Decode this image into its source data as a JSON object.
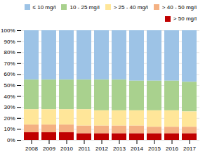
{
  "chart_data": {
    "type": "bar",
    "stacked": true,
    "categories": [
      "2008",
      "2009",
      "2010",
      "2011",
      "2012",
      "2013",
      "2014",
      "2015",
      "2016",
      "2017"
    ],
    "series": [
      {
        "name": "≤ 10 mg/l",
        "color": "#9DC3E6",
        "values": [
          45,
          45,
          45,
          45,
          45,
          45,
          46,
          46,
          46,
          47
        ]
      },
      {
        "name": "10 - 25 mg/l",
        "color": "#A9D18E",
        "values": [
          27,
          27,
          27,
          27,
          28,
          28,
          27,
          27,
          27,
          27
        ]
      },
      {
        "name": "> 25 - 40 mg/l",
        "color": "#FFE699",
        "values": [
          14,
          14,
          14,
          15,
          14,
          14,
          14,
          15,
          15,
          14
        ]
      },
      {
        "name": "> 40 - 50 mg/l",
        "color": "#F4B183",
        "values": [
          7,
          7,
          7,
          7,
          7,
          7,
          7,
          6,
          6,
          6
        ]
      },
      {
        "name": "> 50 mg/l",
        "color": "#C00000",
        "values": [
          7,
          7,
          7,
          6,
          6,
          6,
          6,
          6,
          6,
          6
        ]
      }
    ],
    "ylim": [
      0,
      100
    ],
    "yticks": [
      {
        "value": 0,
        "label": "0%"
      },
      {
        "value": 10,
        "label": "10%"
      },
      {
        "value": 20,
        "label": "20%"
      },
      {
        "value": 30,
        "label": "30%"
      },
      {
        "value": 40,
        "label": "40%"
      },
      {
        "value": 50,
        "label": "50%"
      },
      {
        "value": 60,
        "label": "60%"
      },
      {
        "value": 70,
        "label": "70%"
      },
      {
        "value": 80,
        "label": "80%"
      },
      {
        "value": 90,
        "label": "90%"
      },
      {
        "value": 100,
        "label": "100%"
      }
    ],
    "grid": true,
    "legend": "upper right"
  }
}
